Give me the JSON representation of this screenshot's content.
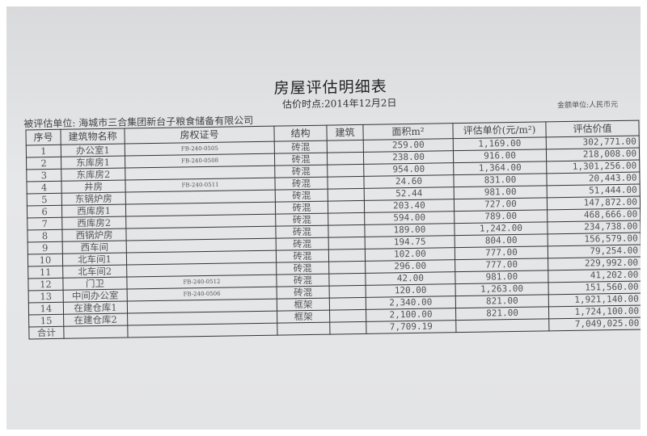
{
  "document": {
    "title": "房屋评估明细表",
    "valuation_date": "估价时点:2014年12月2日",
    "currency_unit": "金额单位:人民币元",
    "appraised_entity": "被评估单位: 海城市三合集团新台子粮食储备有限公司"
  },
  "table": {
    "headers": [
      "序号",
      "建筑物名称",
      "房权证号",
      "结构",
      "建筑",
      "面积m²",
      "评估单价(元/m²)",
      "评估价值"
    ],
    "rows": [
      [
        "1",
        "办公室1",
        "FB-240-0505",
        "砖混",
        "",
        "259.00",
        "1,169.00",
        "302,771.00"
      ],
      [
        "2",
        "东库房1",
        "FB-240-0508",
        "砖混",
        "",
        "238.00",
        "916.00",
        "218,008.00"
      ],
      [
        "3",
        "东库房2",
        "",
        "砖混",
        "",
        "954.00",
        "1,364.00",
        "1,301,256.00"
      ],
      [
        "4",
        "井房",
        "FB-240-0511",
        "砖混",
        "",
        "24.60",
        "831.00",
        "20,443.00"
      ],
      [
        "5",
        "东锅炉房",
        "",
        "砖混",
        "",
        "52.44",
        "981.00",
        "51,444.00"
      ],
      [
        "6",
        "西库房1",
        "",
        "砖混",
        "",
        "203.40",
        "727.00",
        "147,872.00"
      ],
      [
        "7",
        "西库房2",
        "",
        "砖混",
        "",
        "594.00",
        "789.00",
        "468,666.00"
      ],
      [
        "8",
        "西锅炉房",
        "",
        "砖混",
        "",
        "189.00",
        "1,242.00",
        "234,738.00"
      ],
      [
        "9",
        "西车间",
        "",
        "砖混",
        "",
        "194.75",
        "804.00",
        "156,579.00"
      ],
      [
        "10",
        "北车间1",
        "",
        "砖混",
        "",
        "102.00",
        "777.00",
        "79,254.00"
      ],
      [
        "11",
        "北车间2",
        "",
        "砖混",
        "",
        "296.00",
        "777.00",
        "229,992.00"
      ],
      [
        "12",
        "门卫",
        "FB-240-0512",
        "砖混",
        "",
        "42.00",
        "981.00",
        "41,202.00"
      ],
      [
        "13",
        "中间办公室",
        "FB-240-0506",
        "砖混",
        "",
        "120.00",
        "1,263.00",
        "151,560.00"
      ],
      [
        "14",
        "在建仓库1",
        "",
        "框架",
        "",
        "2,340.00",
        "821.00",
        "1,921,140.00"
      ],
      [
        "15",
        "在建仓库2",
        "",
        "框架",
        "",
        "2,100.00",
        "821.00",
        "1,724,100.00"
      ]
    ],
    "total": {
      "label": "合计",
      "area": "7,709.19",
      "value": "7,049,025.00"
    }
  }
}
